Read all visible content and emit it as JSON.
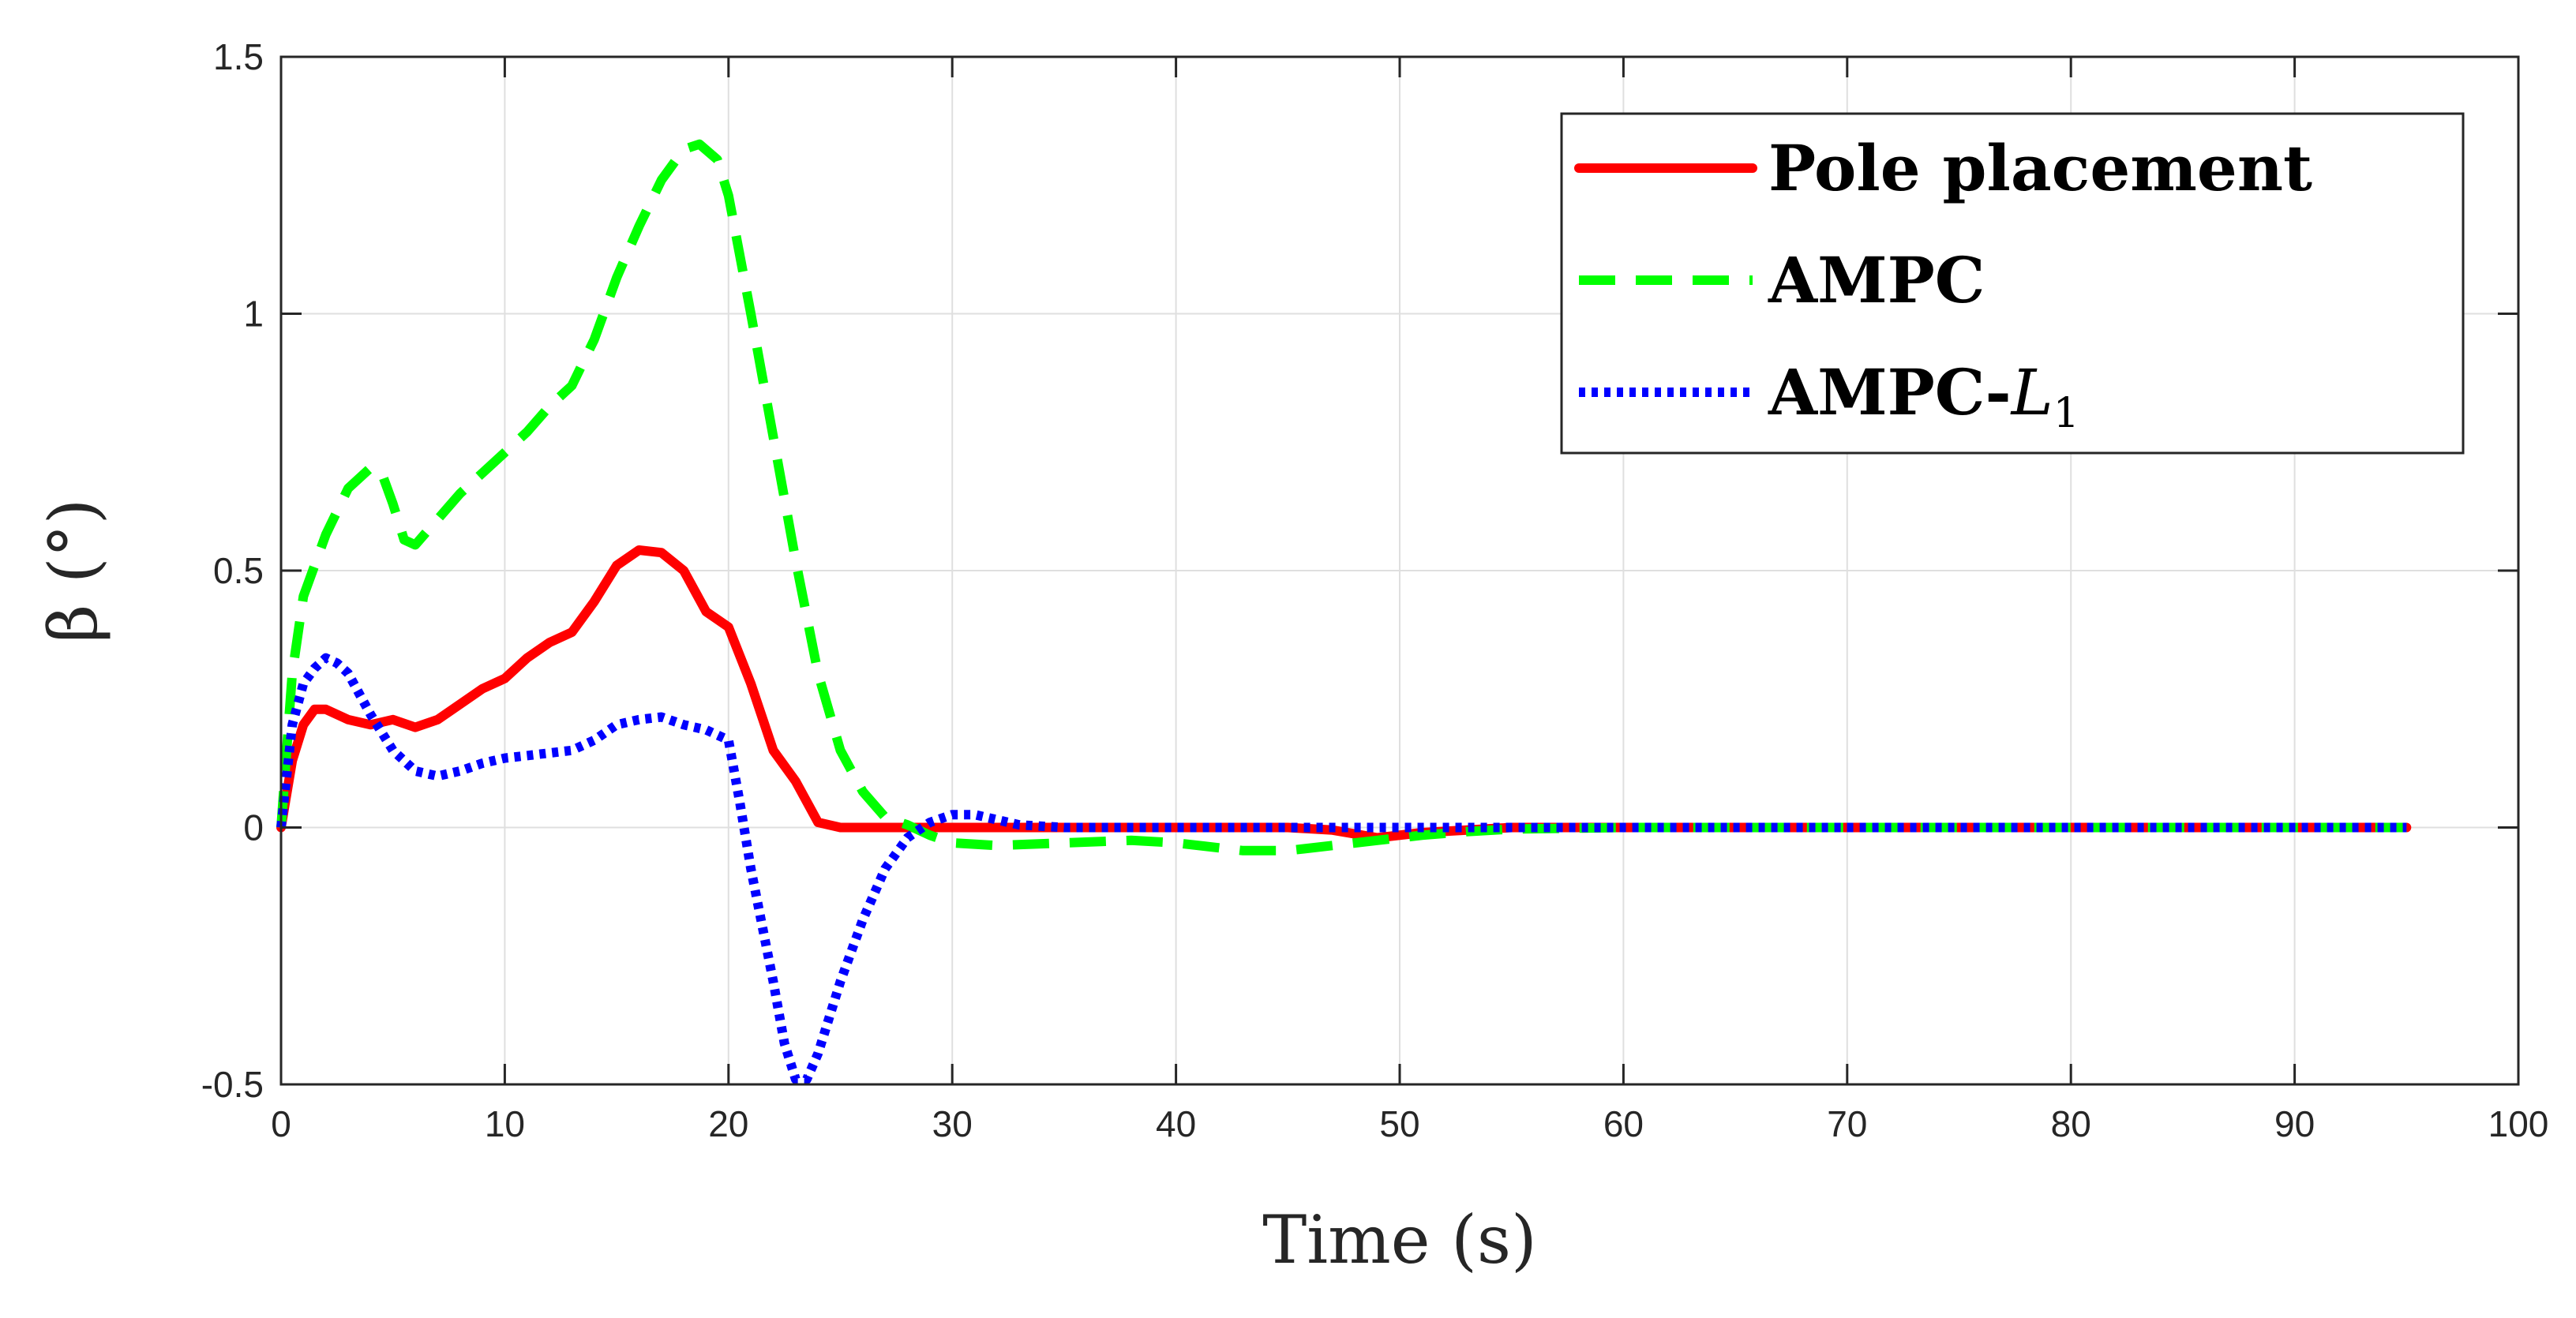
{
  "chart_data": {
    "type": "line",
    "title": "",
    "xlabel": "Time (s)",
    "ylabel": "β (°)",
    "xlim": [
      0,
      100
    ],
    "ylim": [
      -0.5,
      1.5
    ],
    "xticks": [
      0,
      10,
      20,
      30,
      40,
      50,
      60,
      70,
      80,
      90,
      100
    ],
    "yticks": [
      -0.5,
      0,
      0.5,
      1,
      1.5
    ],
    "xtick_labels": [
      "0",
      "10",
      "20",
      "30",
      "40",
      "50",
      "60",
      "70",
      "80",
      "90",
      "100"
    ],
    "ytick_labels": [
      "-0.5",
      "0",
      "0.5",
      "1",
      "1.5"
    ],
    "grid": true,
    "legend_position": "top-right",
    "series": [
      {
        "name": "Pole placement",
        "legend_label": "Pole placement",
        "color": "#ff0000",
        "style": "solid",
        "x": [
          0,
          0.5,
          1,
          1.5,
          2,
          3,
          4,
          5,
          6,
          7,
          8,
          9,
          10,
          11,
          12,
          13,
          14,
          15,
          16,
          17,
          18,
          19,
          20,
          21,
          22,
          23,
          24,
          25,
          26,
          28,
          30,
          35,
          40,
          45,
          47,
          49,
          51,
          53,
          55,
          60,
          70,
          80,
          90,
          95
        ],
        "y": [
          0,
          0.13,
          0.2,
          0.23,
          0.23,
          0.21,
          0.2,
          0.21,
          0.195,
          0.21,
          0.24,
          0.27,
          0.29,
          0.33,
          0.36,
          0.38,
          0.44,
          0.51,
          0.54,
          0.535,
          0.5,
          0.42,
          0.39,
          0.28,
          0.15,
          0.09,
          0.01,
          0,
          0,
          0,
          0,
          0,
          0,
          0,
          -0.005,
          -0.02,
          -0.01,
          -0.005,
          0,
          0,
          0,
          0,
          0,
          0
        ]
      },
      {
        "name": "AMPC",
        "legend_label": "AMPC",
        "color": "#00ff00",
        "style": "dashed",
        "x": [
          0,
          0.5,
          1,
          2,
          3,
          4,
          4.5,
          5,
          5.5,
          6,
          7,
          8,
          9,
          10,
          11,
          12,
          13,
          14,
          15,
          16,
          17,
          18,
          18.7,
          19.5,
          20,
          21,
          22,
          23,
          24,
          25,
          26,
          27,
          28,
          29,
          30,
          32,
          35,
          38,
          40,
          43,
          45,
          47,
          49,
          51,
          53,
          55,
          60,
          70,
          80,
          90,
          95
        ],
        "y": [
          0,
          0.3,
          0.45,
          0.57,
          0.66,
          0.7,
          0.69,
          0.63,
          0.56,
          0.55,
          0.6,
          0.65,
          0.69,
          0.73,
          0.77,
          0.82,
          0.86,
          0.95,
          1.07,
          1.17,
          1.26,
          1.32,
          1.33,
          1.3,
          1.23,
          1.0,
          0.76,
          0.52,
          0.3,
          0.15,
          0.07,
          0.02,
          0.005,
          -0.015,
          -0.03,
          -0.035,
          -0.03,
          -0.025,
          -0.03,
          -0.045,
          -0.045,
          -0.035,
          -0.025,
          -0.015,
          -0.008,
          -0.003,
          0,
          0,
          0,
          0,
          0
        ]
      },
      {
        "name": "AMPC-L1",
        "legend_label": "AMPC-",
        "legend_math": "L",
        "legend_sub": "1",
        "color": "#0000ff",
        "style": "dotted",
        "x": [
          0,
          0.5,
          1,
          1.5,
          2,
          2.5,
          3,
          4,
          5,
          6,
          7,
          8,
          9,
          10,
          11,
          12,
          13,
          14,
          15,
          16,
          17,
          18,
          19,
          20,
          20.5,
          21,
          22,
          22.5,
          23,
          23.5,
          24,
          25,
          26,
          27,
          28,
          29,
          30,
          31,
          32,
          33,
          35,
          40,
          50,
          60,
          70,
          80,
          90,
          95
        ],
        "y": [
          0,
          0.2,
          0.28,
          0.31,
          0.33,
          0.32,
          0.3,
          0.22,
          0.15,
          0.11,
          0.1,
          0.11,
          0.125,
          0.135,
          0.14,
          0.145,
          0.15,
          0.17,
          0.2,
          0.21,
          0.215,
          0.2,
          0.19,
          0.17,
          0.05,
          -0.08,
          -0.3,
          -0.42,
          -0.49,
          -0.49,
          -0.44,
          -0.3,
          -0.18,
          -0.08,
          -0.02,
          0.01,
          0.025,
          0.025,
          0.015,
          0.005,
          0,
          0,
          0,
          0,
          0,
          0,
          0,
          0
        ]
      }
    ]
  }
}
